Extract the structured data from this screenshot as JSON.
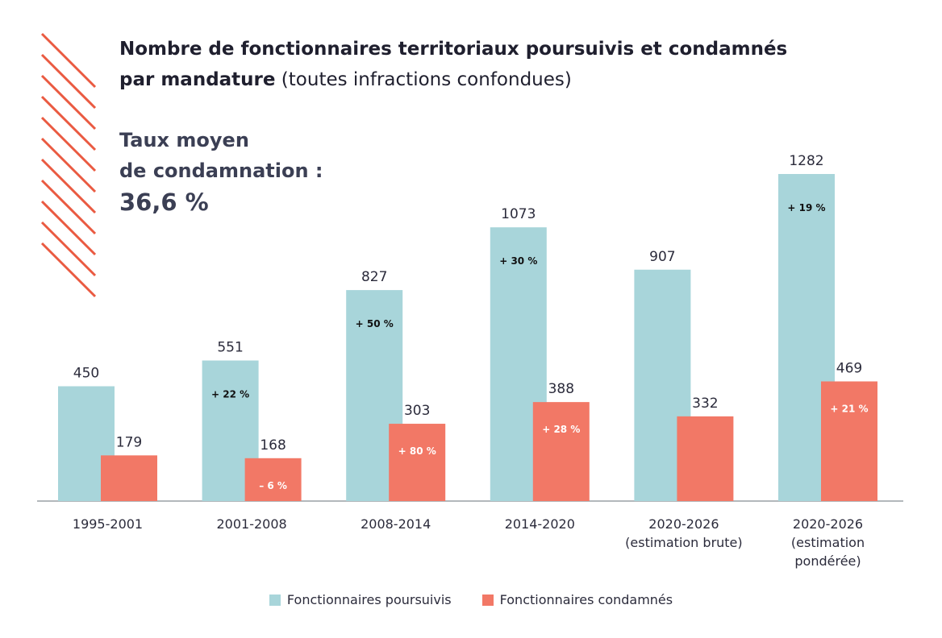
{
  "title": {
    "line1": "Nombre de fonctionnaires territoriaux poursuivis et condamnés",
    "line2_bold": "par mandature",
    "line2_light": " (toutes infractions confondues)"
  },
  "stat": {
    "label_line1": "Taux moyen",
    "label_line2": "de condamnation :",
    "value": "36,6 %"
  },
  "colors": {
    "poursuivis": "#a8d5da",
    "condamnes": "#f27866",
    "stripes": "#ea5a41",
    "axis": "#9aa0a6"
  },
  "chart_data": {
    "type": "bar",
    "categories": [
      [
        "1995-2001"
      ],
      [
        "2001-2008"
      ],
      [
        "2008-2014"
      ],
      [
        "2014-2020"
      ],
      [
        "2020-2026",
        "(estimation brute)"
      ],
      [
        "2020-2026",
        "(estimation",
        "pondérée)"
      ]
    ],
    "series": [
      {
        "name": "Fonctionnaires poursuivis",
        "values": [
          450,
          551,
          827,
          1073,
          907,
          1282
        ],
        "changes": [
          "",
          "+ 22 %",
          "+ 50 %",
          "+ 30 %",
          "",
          "+ 19 %"
        ]
      },
      {
        "name": "Fonctionnaires condamnés",
        "values": [
          179,
          168,
          303,
          388,
          332,
          469
        ],
        "changes": [
          "",
          "– 6 %",
          "+ 80 %",
          "+ 28 %",
          "",
          "+ 21 %"
        ]
      }
    ],
    "ylim": [
      0,
      1282
    ],
    "grid": false,
    "legend": "bottom"
  }
}
